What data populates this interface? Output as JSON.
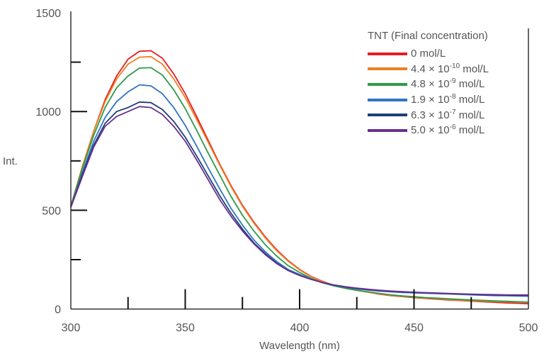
{
  "chart_data": {
    "type": "line",
    "title": "",
    "xlabel": "Wavelength (nm)",
    "ylabel": "Int.",
    "xlim": [
      300,
      500
    ],
    "ylim": [
      0,
      1500
    ],
    "grid": false,
    "legend_placement": "top-right",
    "x_ticks": [
      300,
      350,
      400,
      450,
      500
    ],
    "x_tick_labels": [
      "300",
      "350",
      "400",
      "450",
      "500"
    ],
    "x_minor_ticks": [
      325,
      375,
      425,
      475
    ],
    "y_ticks": [
      0,
      500,
      1000,
      1500
    ],
    "y_tick_labels": [
      "0",
      "500",
      "1000",
      "1500"
    ],
    "y_minor_ticks": [
      250,
      750,
      1250
    ],
    "legend_title": "TNT (Final concentration)",
    "x": [
      300,
      305,
      310,
      315,
      320,
      325,
      330,
      335,
      340,
      345,
      350,
      355,
      360,
      365,
      370,
      375,
      380,
      385,
      390,
      395,
      400,
      405,
      410,
      415,
      420,
      425,
      430,
      435,
      440,
      445,
      450,
      455,
      460,
      465,
      470,
      475,
      480,
      485,
      490,
      495,
      500
    ],
    "series": [
      {
        "name": "0 mol/L",
        "label": {
          "prefix": "0 mol/L",
          "exp": "",
          "suffix": ""
        },
        "color": "#e31e24",
        "values": [
          520,
          720,
          900,
          1060,
          1180,
          1265,
          1305,
          1308,
          1270,
          1190,
          1090,
          975,
          855,
          735,
          625,
          525,
          440,
          365,
          300,
          245,
          200,
          165,
          140,
          120,
          105,
          95,
          85,
          75,
          68,
          63,
          58,
          54,
          50,
          46,
          43,
          40,
          37,
          34,
          31,
          29,
          27
        ]
      },
      {
        "name": "4.4 × 10-10 mol/L",
        "label": {
          "prefix": "4.4 × 10",
          "exp": "-10",
          "suffix": " mol/L"
        },
        "color": "#f07f22",
        "values": [
          520,
          720,
          900,
          1050,
          1165,
          1240,
          1275,
          1278,
          1240,
          1165,
          1070,
          960,
          845,
          730,
          620,
          520,
          435,
          360,
          295,
          242,
          198,
          163,
          138,
          120,
          105,
          95,
          85,
          76,
          69,
          64,
          60,
          56,
          52,
          48,
          45,
          42,
          40,
          38,
          36,
          35,
          34
        ]
      },
      {
        "name": "4.8 × 10-9 mol/L",
        "label": {
          "prefix": "4.8 × 10",
          "exp": "-9",
          "suffix": " mol/L"
        },
        "color": "#2e9a47",
        "values": [
          520,
          710,
          880,
          1020,
          1120,
          1180,
          1220,
          1222,
          1185,
          1110,
          1015,
          905,
          790,
          680,
          570,
          475,
          395,
          325,
          268,
          220,
          185,
          155,
          133,
          117,
          105,
          95,
          87,
          79,
          72,
          66,
          62,
          58,
          55,
          52,
          49,
          46,
          44,
          41,
          39,
          37,
          35
        ]
      },
      {
        "name": "1.9 × 10-8 mol/L",
        "label": {
          "prefix": "1.9 × 10",
          "exp": "-8",
          "suffix": " mol/L"
        },
        "color": "#2f74c0",
        "values": [
          515,
          690,
          850,
          970,
          1050,
          1100,
          1135,
          1130,
          1090,
          1020,
          930,
          825,
          715,
          610,
          510,
          425,
          350,
          290,
          240,
          200,
          175,
          152,
          134,
          120,
          110,
          102,
          96,
          91,
          87,
          84,
          82,
          80,
          78,
          76,
          74,
          72,
          70,
          68,
          67,
          66,
          65
        ]
      },
      {
        "name": "6.3 × 10-7 mol/L",
        "label": {
          "prefix": "6.3 × 10",
          "exp": "-7",
          "suffix": " mol/L"
        },
        "color": "#1d3f7a",
        "values": [
          515,
          680,
          830,
          940,
          1000,
          1020,
          1048,
          1045,
          1010,
          950,
          870,
          775,
          675,
          575,
          485,
          405,
          335,
          280,
          232,
          195,
          170,
          150,
          134,
          121,
          112,
          104,
          98,
          93,
          89,
          86,
          84,
          82,
          80,
          78,
          76,
          74,
          72,
          71,
          70,
          69,
          68
        ]
      },
      {
        "name": "5.0 × 10-6 mol/L",
        "label": {
          "prefix": "5.0 × 10",
          "exp": "-6",
          "suffix": " mol/L"
        },
        "color": "#6a2f8f",
        "values": [
          515,
          670,
          820,
          925,
          975,
          1000,
          1025,
          1020,
          985,
          925,
          850,
          755,
          655,
          555,
          470,
          395,
          330,
          275,
          230,
          195,
          170,
          150,
          134,
          122,
          113,
          106,
          100,
          95,
          91,
          88,
          85,
          83,
          81,
          79,
          77,
          75,
          74,
          73,
          72,
          71,
          71
        ]
      }
    ]
  }
}
